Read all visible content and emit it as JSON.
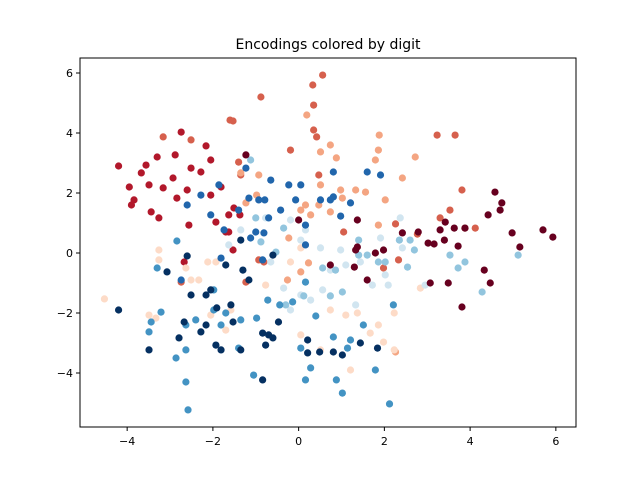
{
  "chart_data": {
    "type": "scatter",
    "title": "Encodings colored by digit",
    "xlabel": "",
    "ylabel": "",
    "xlim": [
      -5.1,
      6.47
    ],
    "ylim": [
      -5.8,
      6.5
    ],
    "xticks": [
      -4,
      -2,
      0,
      2,
      4,
      6
    ],
    "yticks": [
      -4,
      -2,
      0,
      2,
      4,
      6
    ],
    "grid": false,
    "colormap": "RdBu",
    "digit_colors": [
      "#67001f",
      "#b2182b",
      "#d6604d",
      "#f4a582",
      "#fddbc7",
      "#d1e5f0",
      "#92c5de",
      "#4393c3",
      "#2166ac",
      "#053061"
    ],
    "point_format": [
      "x",
      "y",
      "digit"
    ],
    "points": [
      [
        -4.2,
        2.9,
        1
      ],
      [
        -3.95,
        2.2,
        1
      ],
      [
        -3.84,
        1.77,
        1
      ],
      [
        -3.9,
        1.6,
        1
      ],
      [
        -3.67,
        2.67,
        1
      ],
      [
        -3.56,
        2.93,
        1
      ],
      [
        -3.49,
        2.27,
        1
      ],
      [
        -3.44,
        1.37,
        1
      ],
      [
        -3.26,
        1.17,
        1
      ],
      [
        -3.16,
        2.17,
        1
      ],
      [
        -2.93,
        2.5,
        1
      ],
      [
        -2.88,
        3.27,
        1
      ],
      [
        -2.74,
        4.03,
        1
      ],
      [
        -2.84,
        1.83,
        1
      ],
      [
        -2.6,
        2.1,
        1
      ],
      [
        -2.51,
        2.83,
        1
      ],
      [
        -2.28,
        2.7,
        1
      ],
      [
        -2.16,
        3.57,
        1
      ],
      [
        -2.05,
        1.93,
        1
      ],
      [
        -1.81,
        2.2,
        1
      ],
      [
        -1.63,
        1.27,
        1
      ],
      [
        -1.51,
        1.5,
        1
      ],
      [
        -1.93,
        1.03,
        1
      ],
      [
        -3.3,
        3.2,
        1
      ],
      [
        -2.56,
        0.93,
        1
      ],
      [
        -1.7,
        0.7,
        1
      ],
      [
        -2.05,
        3.1,
        1
      ],
      [
        -1.37,
        1.27,
        1
      ],
      [
        -1.63,
        0.7,
        1
      ],
      [
        -1.53,
        0.1,
        1
      ],
      [
        -2.67,
        -0.3,
        1
      ],
      [
        0.56,
        5.93,
        2
      ],
      [
        0.33,
        5.6,
        2
      ],
      [
        -0.88,
        5.2,
        2
      ],
      [
        0.35,
        4.93,
        2
      ],
      [
        -1.6,
        4.43,
        2
      ],
      [
        -1.53,
        4.4,
        2
      ],
      [
        0.35,
        4.1,
        2
      ],
      [
        0.42,
        3.87,
        2
      ],
      [
        3.23,
        3.93,
        2
      ],
      [
        3.65,
        3.93,
        2
      ],
      [
        -0.19,
        3.43,
        2
      ],
      [
        -3.16,
        3.87,
        2
      ],
      [
        -2.51,
        3.77,
        2
      ],
      [
        -1.4,
        3.03,
        2
      ],
      [
        -1.35,
        2.6,
        2
      ],
      [
        0.47,
        2.6,
        2
      ],
      [
        3.81,
        2.1,
        2
      ],
      [
        3.53,
        1.43,
        2
      ],
      [
        3.3,
        1.17,
        2
      ],
      [
        3.88,
        0.83,
        2
      ],
      [
        4.12,
        0.83,
        2
      ],
      [
        2.26,
        0.97,
        2
      ],
      [
        2.77,
        0.63,
        2
      ],
      [
        1.05,
        0.7,
        2
      ],
      [
        1.98,
        -0.5,
        2
      ],
      [
        2.33,
        -0.23,
        2
      ],
      [
        -0.93,
        -0.23,
        2
      ],
      [
        -0.81,
        -0.3,
        2
      ],
      [
        -2.74,
        -0.97,
        2
      ],
      [
        -1.23,
        -0.97,
        2
      ],
      [
        0.19,
        4.6,
        3
      ],
      [
        0.74,
        3.6,
        3
      ],
      [
        0.51,
        3.37,
        3
      ],
      [
        0.88,
        3.17,
        3
      ],
      [
        1.88,
        3.93,
        3
      ],
      [
        1.86,
        3.43,
        3
      ],
      [
        1.79,
        3.1,
        3
      ],
      [
        2.72,
        3.2,
        3
      ],
      [
        2.42,
        2.5,
        3
      ],
      [
        1.33,
        2.1,
        3
      ],
      [
        1.56,
        2.03,
        3
      ],
      [
        0.51,
        2.27,
        3
      ],
      [
        0.98,
        2.1,
        3
      ],
      [
        1.02,
        1.83,
        3
      ],
      [
        -1.35,
        2.67,
        3
      ],
      [
        -0.93,
        2.6,
        3
      ],
      [
        -0.98,
        1.93,
        3
      ],
      [
        -1.23,
        1.67,
        3
      ],
      [
        0.47,
        1.6,
        3
      ],
      [
        0.16,
        1.6,
        3
      ],
      [
        0.05,
        1.43,
        3
      ],
      [
        0.74,
        1.37,
        3
      ],
      [
        2.02,
        1.77,
        3
      ],
      [
        1.86,
        0.93,
        3
      ],
      [
        0.05,
        -0.63,
        3
      ],
      [
        0.23,
        -0.33,
        3
      ],
      [
        -0.23,
        0.5,
        3
      ],
      [
        0.28,
        1.27,
        3
      ],
      [
        2.26,
        -3.3,
        3
      ],
      [
        -0.26,
        -0.9,
        3
      ],
      [
        -4.53,
        -1.53,
        4
      ],
      [
        -3.26,
        0.1,
        4
      ],
      [
        -3.26,
        -0.23,
        4
      ],
      [
        -2.63,
        -0.5,
        4
      ],
      [
        -2.51,
        -0.9,
        4
      ],
      [
        -2.12,
        -0.3,
        4
      ],
      [
        -1.93,
        -0.3,
        4
      ],
      [
        -2.33,
        -0.9,
        4
      ],
      [
        -3.49,
        -2.07,
        4
      ],
      [
        -3.33,
        -2.17,
        4
      ],
      [
        -2.05,
        -2.07,
        4
      ],
      [
        -1.7,
        -2.57,
        4
      ],
      [
        -0.77,
        -1.07,
        4
      ],
      [
        -1.58,
        -1.9,
        4
      ],
      [
        0.05,
        -2.73,
        4
      ],
      [
        0.51,
        -3.23,
        4
      ],
      [
        1.21,
        -3.9,
        4
      ],
      [
        0.74,
        -1.9,
        4
      ],
      [
        1.1,
        -2.07,
        4
      ],
      [
        1.37,
        -2.0,
        4
      ],
      [
        1.67,
        -2.67,
        4
      ],
      [
        1.98,
        -2.97,
        4
      ],
      [
        2.23,
        -3.23,
        4
      ],
      [
        1.86,
        -2.4,
        4
      ],
      [
        2.23,
        -2.0,
        4
      ],
      [
        2.84,
        -1.17,
        4
      ],
      [
        0.05,
        0.17,
        4
      ],
      [
        -0.19,
        -0.3,
        4
      ],
      [
        -0.19,
        1.1,
        5
      ],
      [
        0.16,
        0.77,
        5
      ],
      [
        0.05,
        0.43,
        5
      ],
      [
        0.51,
        0.17,
        5
      ],
      [
        0.98,
        0.1,
        5
      ],
      [
        1.1,
        -0.4,
        5
      ],
      [
        1.44,
        -0.3,
        5
      ],
      [
        1.72,
        -1.07,
        5
      ],
      [
        2.09,
        -1.07,
        5
      ],
      [
        2.37,
        1.17,
        5
      ],
      [
        2.95,
        -1.07,
        5
      ],
      [
        0.05,
        -1.4,
        5
      ],
      [
        0.28,
        -1.57,
        5
      ],
      [
        -0.35,
        -1.17,
        5
      ],
      [
        -0.65,
        -0.3,
        5
      ],
      [
        0.56,
        -1.23,
        5
      ],
      [
        1.33,
        -1.73,
        5
      ],
      [
        -1.63,
        0.27,
        5
      ],
      [
        -1.35,
        0.77,
        5
      ],
      [
        -0.77,
        1.17,
        5
      ],
      [
        1.91,
        0.5,
        5
      ],
      [
        2.42,
        0.17,
        5
      ],
      [
        2.02,
        -0.73,
        5
      ],
      [
        -0.19,
        -1.9,
        5
      ],
      [
        0.74,
        -0.57,
        5
      ],
      [
        -0.88,
        0.37,
        6
      ],
      [
        -0.53,
        0.03,
        6
      ],
      [
        0.56,
        -0.5,
        6
      ],
      [
        0.86,
        -0.57,
        6
      ],
      [
        1.4,
        -0.07,
        6
      ],
      [
        1.6,
        -0.07,
        6
      ],
      [
        1.86,
        -0.3,
        6
      ],
      [
        2.02,
        -0.3,
        6
      ],
      [
        2.54,
        -0.47,
        6
      ],
      [
        2.7,
        0.1,
        6
      ],
      [
        2.35,
        0.43,
        6
      ],
      [
        3.53,
        -0.07,
        6
      ],
      [
        3.72,
        -0.5,
        6
      ],
      [
        3.88,
        -0.3,
        6
      ],
      [
        5.12,
        -0.07,
        6
      ],
      [
        4.28,
        -1.3,
        6
      ],
      [
        1.02,
        -1.3,
        6
      ],
      [
        0.12,
        -1.43,
        6
      ],
      [
        -0.3,
        -1.73,
        6
      ],
      [
        0.74,
        -1.43,
        6
      ],
      [
        -1.0,
        1.17,
        6
      ],
      [
        -1.12,
        3.1,
        6
      ],
      [
        -0.35,
        0.83,
        6
      ],
      [
        2.6,
        0.43,
        6
      ],
      [
        1.4,
        0.43,
        6
      ],
      [
        -2.84,
        0.4,
        7
      ],
      [
        -3.3,
        -0.5,
        7
      ],
      [
        -3.49,
        -2.63,
        7
      ],
      [
        -3.44,
        -2.3,
        7
      ],
      [
        -3.21,
        -1.97,
        7
      ],
      [
        -2.86,
        -3.5,
        7
      ],
      [
        -2.63,
        -4.3,
        7
      ],
      [
        -2.58,
        -5.23,
        7
      ],
      [
        -2.63,
        -3.23,
        7
      ],
      [
        -2.63,
        -2.4,
        7
      ],
      [
        -2.4,
        -2.23,
        7
      ],
      [
        -1.7,
        -2.0,
        7
      ],
      [
        -1.81,
        -2.4,
        7
      ],
      [
        -1.35,
        -2.23,
        7
      ],
      [
        -1.05,
        -4.07,
        7
      ],
      [
        -1.4,
        -3.17,
        7
      ],
      [
        -0.98,
        -2.17,
        7
      ],
      [
        -1.98,
        -1.9,
        7
      ],
      [
        -1.98,
        -1.23,
        7
      ],
      [
        -0.72,
        -1.57,
        7
      ],
      [
        -0.14,
        -1.63,
        7
      ],
      [
        0.4,
        -2.1,
        7
      ],
      [
        0.81,
        -2.8,
        7
      ],
      [
        1.14,
        -3.17,
        7
      ],
      [
        0.88,
        -4.23,
        7
      ],
      [
        1.02,
        -4.67,
        7
      ],
      [
        2.12,
        -5.03,
        7
      ],
      [
        1.51,
        -2.4,
        7
      ],
      [
        1.21,
        -2.9,
        7
      ],
      [
        0.28,
        -3.83,
        7
      ],
      [
        0.16,
        -4.23,
        7
      ],
      [
        0.05,
        -3.17,
        7
      ],
      [
        -0.44,
        -1.73,
        7
      ],
      [
        0.16,
        -0.97,
        7
      ],
      [
        2.21,
        -1.73,
        7
      ],
      [
        1.79,
        -3.9,
        7
      ],
      [
        -1.74,
        0.77,
        8
      ],
      [
        -1.23,
        2.83,
        8
      ],
      [
        -0.65,
        2.43,
        8
      ],
      [
        -0.23,
        2.27,
        8
      ],
      [
        -0.93,
        1.77,
        8
      ],
      [
        -1.4,
        1.43,
        8
      ],
      [
        -1.16,
        1.83,
        8
      ],
      [
        -0.79,
        1.77,
        8
      ],
      [
        -0.42,
        1.43,
        8
      ],
      [
        -0.7,
        1.17,
        8
      ],
      [
        -1.0,
        0.7,
        8
      ],
      [
        -0.81,
        0.67,
        8
      ],
      [
        -1.86,
        2.27,
        8
      ],
      [
        -2.28,
        1.93,
        8
      ],
      [
        -2.6,
        1.6,
        8
      ],
      [
        -2.05,
        1.27,
        8
      ],
      [
        0.81,
        2.7,
        8
      ],
      [
        1.91,
        2.6,
        8
      ],
      [
        0.51,
        1.77,
        8
      ],
      [
        0.74,
        1.77,
        8
      ],
      [
        1.6,
        2.7,
        8
      ],
      [
        1.21,
        1.67,
        8
      ],
      [
        0.16,
        0.93,
        8
      ],
      [
        0.16,
        0.27,
        8
      ],
      [
        0.81,
        1.87,
        8
      ],
      [
        0.05,
        2.27,
        8
      ],
      [
        -1.12,
        0.5,
        8
      ],
      [
        -2.74,
        -0.9,
        8
      ],
      [
        -1.81,
        -0.17,
        8
      ],
      [
        0.98,
        1.23,
        8
      ],
      [
        -0.07,
        1.77,
        8
      ],
      [
        -0.84,
        -0.23,
        8
      ],
      [
        -4.2,
        -1.9,
        9
      ],
      [
        -3.49,
        -3.23,
        9
      ],
      [
        -3.07,
        -0.63,
        9
      ],
      [
        -2.67,
        -2.3,
        9
      ],
      [
        -2.51,
        -1.4,
        9
      ],
      [
        -2.28,
        -2.63,
        9
      ],
      [
        -2.05,
        -1.23,
        9
      ],
      [
        -2.16,
        -2.4,
        9
      ],
      [
        -1.91,
        -1.83,
        9
      ],
      [
        -1.58,
        -1.73,
        9
      ],
      [
        -1.53,
        -2.3,
        9
      ],
      [
        -1.3,
        -0.57,
        9
      ],
      [
        -1.7,
        -0.4,
        9
      ],
      [
        -1.35,
        0.43,
        9
      ],
      [
        -1.16,
        -0.9,
        9
      ],
      [
        -0.84,
        -2.67,
        9
      ],
      [
        -0.7,
        -2.73,
        9
      ],
      [
        -0.84,
        -4.23,
        9
      ],
      [
        -0.77,
        -3.07,
        9
      ],
      [
        -0.6,
        -2.83,
        9
      ],
      [
        -1.93,
        -3.07,
        9
      ],
      [
        -1.35,
        -3.23,
        9
      ],
      [
        -0.6,
        -0.07,
        9
      ],
      [
        -2.6,
        -0.1,
        9
      ],
      [
        1.44,
        -3.0,
        9
      ],
      [
        1.02,
        -3.4,
        9
      ],
      [
        0.81,
        -3.3,
        9
      ],
      [
        0.49,
        -3.3,
        9
      ],
      [
        0.21,
        -3.33,
        9
      ],
      [
        1.84,
        -3.17,
        9
      ],
      [
        0.21,
        -2.9,
        9
      ],
      [
        -0.47,
        -2.3,
        9
      ],
      [
        -1.81,
        -3.23,
        9
      ],
      [
        -2.79,
        -2.83,
        9
      ],
      [
        -2.16,
        -1.4,
        9
      ],
      [
        -1.23,
        3.27,
        0
      ],
      [
        0.0,
        1.1,
        0
      ],
      [
        1.37,
        1.1,
        0
      ],
      [
        1.37,
        0.2,
        0
      ],
      [
        1.79,
        0.0,
        0
      ],
      [
        1.98,
        0.1,
        0
      ],
      [
        2.42,
        0.67,
        0
      ],
      [
        2.79,
        0.7,
        0
      ],
      [
        3.02,
        0.33,
        0
      ],
      [
        3.16,
        0.3,
        0
      ],
      [
        3.4,
        0.43,
        0
      ],
      [
        3.42,
        1.03,
        0
      ],
      [
        3.3,
        0.77,
        0
      ],
      [
        3.63,
        0.83,
        0
      ],
      [
        3.72,
        0.23,
        0
      ],
      [
        3.88,
        0.83,
        0
      ],
      [
        4.58,
        2.03,
        0
      ],
      [
        4.74,
        1.67,
        0
      ],
      [
        4.7,
        1.43,
        0
      ],
      [
        4.42,
        1.27,
        0
      ],
      [
        4.98,
        0.67,
        0
      ],
      [
        5.7,
        0.77,
        0
      ],
      [
        5.93,
        0.53,
        0
      ],
      [
        5.16,
        0.2,
        0
      ],
      [
        4.33,
        -0.57,
        0
      ],
      [
        4.47,
        -1.0,
        0
      ],
      [
        3.81,
        -1.8,
        0
      ],
      [
        3.49,
        -1.0,
        0
      ],
      [
        3.07,
        -1.0,
        0
      ],
      [
        1.33,
        0.1,
        0
      ],
      [
        0.74,
        -0.4,
        0
      ],
      [
        1.3,
        -0.47,
        0
      ],
      [
        1.6,
        -0.9,
        0
      ]
    ]
  }
}
